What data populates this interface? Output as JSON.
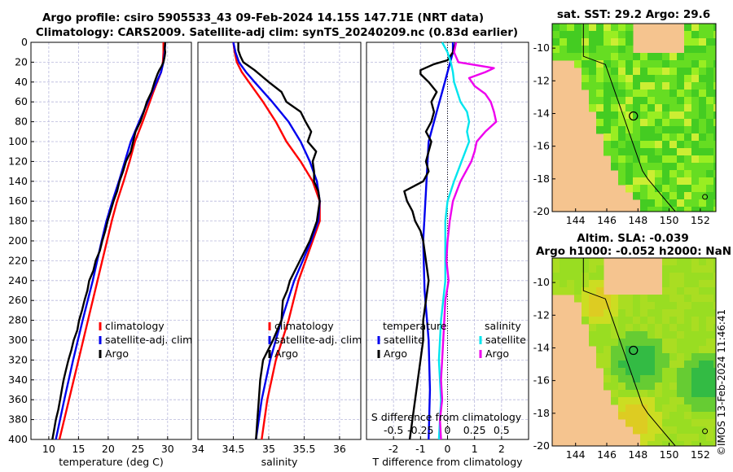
{
  "figure": {
    "title_line1": "Argo profile: csiro 5905533_43 09-Feb-2024 14.15S 147.71E (NRT data)",
    "title_line2": "Climatology: CARS2009. Satellite-adj clim: synTS_20240209.nc (0.83d earlier)",
    "credit": "©IMOS 13-Feb-2024 11:46:41"
  },
  "colors": {
    "climatology": "#ff0000",
    "satellite_adj": "#0000ee",
    "argo": "#000000",
    "salinity_diff_satellite": "#00e5ee",
    "salinity_diff_argo": "#ee00ee",
    "land": "#f5c48f",
    "grid": "#b8b8dc"
  },
  "chart_data": [
    {
      "type": "line",
      "id": "temperature",
      "xlabel": "temperature (deg C)",
      "ylabel": "",
      "xlim": [
        7,
        34
      ],
      "ylim": [
        400,
        0
      ],
      "xticks": [
        10,
        15,
        20,
        25,
        30
      ],
      "xtick_labels": [
        "10",
        "15",
        "20",
        "25",
        "30"
      ],
      "yticks": [
        0,
        20,
        40,
        60,
        80,
        100,
        120,
        140,
        160,
        180,
        200,
        220,
        240,
        260,
        280,
        300,
        320,
        340,
        360,
        380,
        400
      ],
      "ytick_labels": [
        "0",
        "20",
        "40",
        "60",
        "80",
        "100",
        "120",
        "140",
        "160",
        "180",
        "200",
        "220",
        "240",
        "260",
        "280",
        "300",
        "320",
        "340",
        "360",
        "380",
        "400"
      ],
      "legend": [
        "climatology",
        "satellite-adj. clim",
        "Argo"
      ],
      "series": [
        {
          "name": "climatology",
          "color": "#ff0000",
          "depth": [
            0,
            10,
            20,
            30,
            50,
            80,
            100,
            120,
            140,
            160,
            180,
            200,
            240,
            280,
            320,
            360,
            400
          ],
          "values": [
            29.3,
            29.3,
            29.2,
            28.9,
            27.6,
            25.8,
            24.5,
            23.6,
            22.6,
            21.5,
            20.6,
            19.8,
            18.2,
            16.6,
            15.0,
            13.4,
            11.8
          ]
        },
        {
          "name": "satellite-adj. clim",
          "color": "#0000ee",
          "depth": [
            0,
            10,
            20,
            30,
            50,
            80,
            100,
            120,
            140,
            160,
            180,
            200,
            240,
            280,
            320,
            360,
            400
          ],
          "values": [
            29.6,
            29.5,
            29.3,
            28.9,
            27.4,
            25.2,
            23.8,
            22.8,
            21.8,
            20.7,
            19.7,
            18.9,
            17.4,
            15.7,
            14.1,
            12.6,
            11.2
          ]
        },
        {
          "name": "Argo",
          "color": "#000000",
          "depth": [
            0,
            6,
            10,
            14,
            20,
            24,
            28,
            32,
            40,
            50,
            60,
            70,
            80,
            90,
            100,
            110,
            120,
            130,
            140,
            150,
            160,
            170,
            180,
            190,
            200,
            210,
            220,
            230,
            240,
            250,
            260,
            270,
            280,
            290,
            300,
            310,
            320,
            330,
            340,
            350,
            360,
            370,
            380,
            390,
            400
          ],
          "values": [
            29.6,
            29.5,
            29.6,
            29.5,
            29.3,
            29.0,
            28.6,
            28.3,
            27.8,
            27.3,
            26.5,
            26.0,
            25.4,
            24.6,
            24.2,
            23.8,
            23.0,
            22.5,
            21.9,
            21.5,
            20.9,
            20.4,
            19.9,
            19.5,
            19.0,
            18.6,
            17.9,
            17.5,
            16.8,
            16.5,
            16.0,
            15.6,
            15.1,
            14.8,
            14.2,
            13.8,
            13.3,
            12.9,
            12.5,
            12.2,
            11.9,
            11.6,
            11.2,
            10.9,
            10.6
          ]
        }
      ]
    },
    {
      "type": "line",
      "id": "salinity",
      "xlabel": "salinity",
      "ylabel": "",
      "xlim": [
        34,
        36.3
      ],
      "ylim": [
        400,
        0
      ],
      "xticks": [
        34,
        34.5,
        35,
        35.5,
        36
      ],
      "xtick_labels": [
        "34",
        "34.5",
        "35",
        "35.5",
        "36"
      ],
      "legend": [
        "climatology",
        "satellite-adj. clim",
        "Argo"
      ],
      "series": [
        {
          "name": "climatology",
          "color": "#ff0000",
          "depth": [
            0,
            10,
            20,
            30,
            40,
            60,
            80,
            100,
            120,
            140,
            160,
            180,
            200,
            240,
            280,
            320,
            360,
            400
          ],
          "values": [
            34.5,
            34.52,
            34.55,
            34.62,
            34.72,
            34.92,
            35.1,
            35.25,
            35.45,
            35.62,
            35.72,
            35.72,
            35.62,
            35.42,
            35.28,
            35.1,
            34.98,
            34.9
          ]
        },
        {
          "name": "satellite-adj. clim",
          "color": "#0000ee",
          "depth": [
            0,
            10,
            20,
            30,
            40,
            60,
            80,
            100,
            120,
            140,
            160,
            180,
            200,
            240,
            280,
            320,
            360,
            400
          ],
          "values": [
            34.5,
            34.53,
            34.58,
            34.68,
            34.8,
            35.05,
            35.28,
            35.45,
            35.58,
            35.68,
            35.72,
            35.7,
            35.6,
            35.36,
            35.18,
            35.02,
            34.9,
            34.82
          ]
        },
        {
          "name": "Argo",
          "color": "#000000",
          "depth": [
            0,
            8,
            14,
            20,
            28,
            34,
            40,
            50,
            60,
            70,
            80,
            90,
            100,
            110,
            120,
            130,
            140,
            150,
            160,
            170,
            180,
            200,
            220,
            240,
            250,
            260,
            280,
            300,
            320,
            340,
            360,
            380,
            400
          ],
          "values": [
            34.57,
            34.57,
            34.6,
            34.64,
            34.8,
            34.9,
            35.0,
            35.18,
            35.25,
            35.45,
            35.52,
            35.6,
            35.55,
            35.67,
            35.62,
            35.64,
            35.64,
            35.7,
            35.72,
            35.7,
            35.68,
            35.58,
            35.44,
            35.3,
            35.26,
            35.2,
            35.18,
            35.06,
            34.92,
            34.88,
            34.86,
            34.84,
            34.82
          ]
        }
      ]
    },
    {
      "type": "line",
      "id": "differences",
      "xlabel": "T difference from climatology",
      "xlabel_top": "S difference from climatology",
      "xlim": [
        -3,
        3
      ],
      "ylim": [
        400,
        0
      ],
      "xticks": [
        -2,
        -1,
        0,
        1,
        2
      ],
      "xtick_labels": [
        "-2",
        "-1",
        "0",
        "1",
        "2"
      ],
      "sticks": [
        -0.5,
        -0.25,
        0,
        0.25,
        0.5
      ],
      "stick_labels": [
        "-0.5",
        "-0.25",
        "0",
        "0.25",
        "0.5"
      ],
      "legend_temperature_title": "temperature",
      "legend_salinity_title": "salinity",
      "legend_temperature": [
        "satellite",
        "Argo"
      ],
      "legend_salinity": [
        "satellite",
        "Argo"
      ],
      "series": [
        {
          "name": "T satellite",
          "color": "#0000ee",
          "depth": [
            0,
            10,
            20,
            30,
            50,
            70,
            100,
            150,
            200,
            250,
            300,
            350,
            400
          ],
          "values": [
            0.2,
            0.2,
            0.1,
            0.0,
            -0.2,
            -0.4,
            -0.7,
            -0.8,
            -0.9,
            -0.85,
            -0.7,
            -0.65,
            -0.7
          ]
        },
        {
          "name": "T Argo",
          "color": "#000000",
          "depth": [
            0,
            10,
            18,
            22,
            28,
            32,
            40,
            50,
            60,
            70,
            80,
            90,
            100,
            110,
            120,
            130,
            140,
            150,
            160,
            170,
            180,
            190,
            200,
            220,
            240,
            260,
            280,
            300,
            320,
            340,
            360,
            380,
            400
          ],
          "values": [
            0.3,
            0.2,
            0.0,
            -0.5,
            -1.0,
            -1.0,
            -0.7,
            -0.4,
            -0.6,
            -0.5,
            -0.6,
            -0.8,
            -0.6,
            -0.7,
            -0.8,
            -0.7,
            -0.9,
            -1.6,
            -1.5,
            -1.3,
            -1.2,
            -1.0,
            -0.9,
            -0.8,
            -0.7,
            -0.8,
            -0.9,
            -0.9,
            -1.0,
            -1.1,
            -1.2,
            -1.3,
            -1.4
          ]
        },
        {
          "name": "S satellite",
          "color": "#00e5ee",
          "depth": [
            0,
            10,
            20,
            30,
            40,
            60,
            70,
            80,
            90,
            100,
            120,
            140,
            160,
            180,
            200,
            240,
            280,
            320,
            360,
            400
          ],
          "values": [
            -0.05,
            0.0,
            0.03,
            0.05,
            0.06,
            0.12,
            0.18,
            0.2,
            0.18,
            0.2,
            0.13,
            0.06,
            0.0,
            -0.02,
            -0.02,
            -0.02,
            -0.06,
            -0.08,
            -0.06,
            -0.08
          ]
        },
        {
          "name": "S Argo",
          "color": "#ee00ee",
          "depth": [
            0,
            10,
            20,
            26,
            30,
            36,
            44,
            52,
            60,
            70,
            80,
            90,
            100,
            110,
            120,
            130,
            140,
            160,
            180,
            200,
            220,
            240,
            260,
            280,
            300,
            320,
            340,
            360,
            380,
            400
          ],
          "values": [
            0.08,
            0.06,
            0.1,
            0.43,
            0.35,
            0.2,
            0.25,
            0.35,
            0.4,
            0.43,
            0.45,
            0.35,
            0.27,
            0.25,
            0.22,
            0.17,
            0.12,
            0.05,
            0.02,
            0.0,
            -0.01,
            0.01,
            -0.02,
            -0.03,
            -0.04,
            -0.05,
            -0.06,
            -0.05,
            -0.07,
            -0.06
          ]
        }
      ]
    },
    {
      "type": "heatmap",
      "id": "sst_map",
      "title": "sat. SST: 29.2 Argo: 29.6",
      "xticks": [
        144,
        146,
        148,
        150,
        152
      ],
      "xtick_labels": [
        "144",
        "146",
        "148",
        "150",
        "152"
      ],
      "yticks": [
        -10,
        -12,
        -14,
        -16,
        -18,
        -20
      ],
      "ytick_labels": [
        "-10",
        "-12",
        "-14",
        "-16",
        "-18",
        "-20"
      ],
      "xlim": [
        142.5,
        153
      ],
      "ylim": [
        -20,
        -8.5
      ],
      "marker": {
        "lon": 147.71,
        "lat": -14.15
      }
    },
    {
      "type": "heatmap",
      "id": "sla_map",
      "title": "Altim. SLA: -0.039",
      "subtitle": "Argo h1000: -0.052 h2000: NaN",
      "xticks": [
        144,
        146,
        148,
        150,
        152
      ],
      "xtick_labels": [
        "144",
        "146",
        "148",
        "150",
        "152"
      ],
      "yticks": [
        -10,
        -12,
        -14,
        -16,
        -18,
        -20
      ],
      "ytick_labels": [
        "-10",
        "-12",
        "-14",
        "-16",
        "-18",
        "-20"
      ],
      "xlim": [
        142.5,
        153
      ],
      "ylim": [
        -20,
        -8.5
      ],
      "marker": {
        "lon": 147.71,
        "lat": -14.15
      }
    }
  ]
}
